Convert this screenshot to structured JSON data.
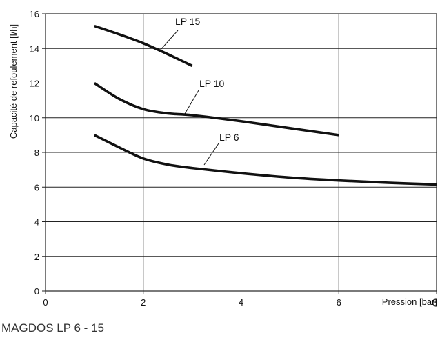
{
  "caption": "MAGDOS LP 6 - 15",
  "chart_data": {
    "type": "line",
    "xlabel": "Pression [bar]",
    "ylabel": "Capacité de refoulement [l/h]",
    "xlim": [
      0,
      8
    ],
    "ylim": [
      0,
      16
    ],
    "xticks": [
      0,
      2,
      4,
      6,
      8
    ],
    "yticks": [
      0,
      2,
      4,
      6,
      8,
      10,
      12,
      14,
      16
    ],
    "grid": true,
    "series": [
      {
        "name": "LP 15",
        "x": [
          1,
          2,
          3
        ],
        "y": [
          15.3,
          14.3,
          13.0
        ]
      },
      {
        "name": "LP 10",
        "x": [
          1,
          1.5,
          2,
          2.5,
          3,
          4,
          5,
          6
        ],
        "y": [
          12.0,
          11.1,
          10.5,
          10.25,
          10.15,
          9.8,
          9.4,
          9.0
        ]
      },
      {
        "name": "LP 6",
        "x": [
          1,
          1.5,
          2,
          2.5,
          3,
          4,
          5,
          6,
          7,
          8
        ],
        "y": [
          9.0,
          8.3,
          7.65,
          7.3,
          7.1,
          6.8,
          6.55,
          6.38,
          6.25,
          6.15
        ]
      }
    ]
  }
}
